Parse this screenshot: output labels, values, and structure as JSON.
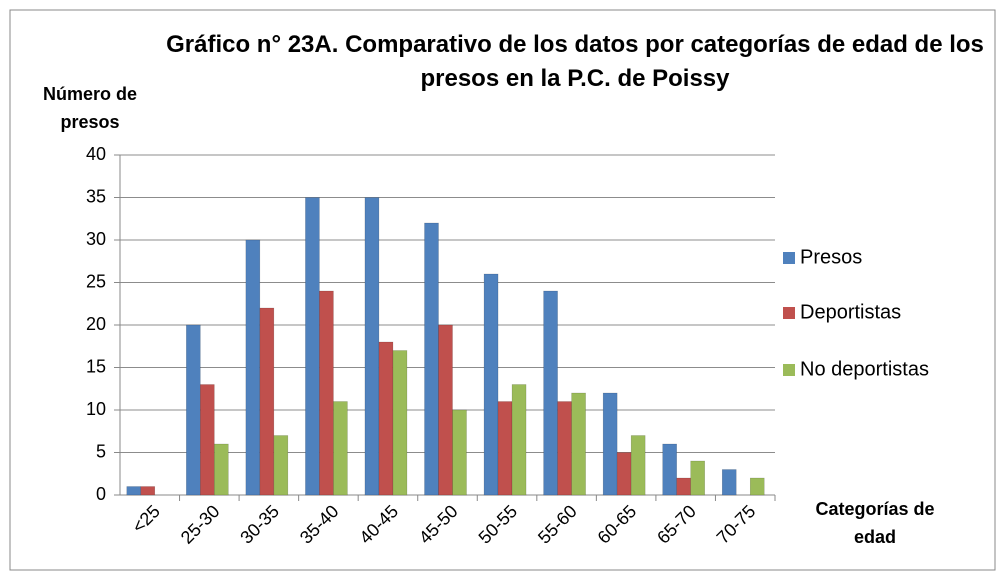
{
  "chart_data": {
    "type": "bar",
    "title": "Gráfico n° 23A. Comparativo de los datos por categorías  de edad de los presos en la P.C. de Poissy",
    "y_label": "Número de presos",
    "x_label": "Categorías de edad",
    "categories": [
      "<25",
      "25-30",
      "30-35",
      "35-40",
      "40-45",
      "45-50",
      "50-55",
      "55-60",
      "60-65",
      "65-70",
      "70-75"
    ],
    "series": [
      {
        "name": "Presos",
        "color": "#4f81bd",
        "values": [
          1,
          20,
          30,
          35,
          35,
          32,
          26,
          24,
          12,
          6,
          3
        ]
      },
      {
        "name": "Deportistas",
        "color": "#c0504d",
        "values": [
          1,
          13,
          22,
          24,
          18,
          20,
          11,
          11,
          5,
          2,
          0
        ]
      },
      {
        "name": "No deportistas",
        "color": "#9bbb59",
        "values": [
          0,
          6,
          7,
          11,
          17,
          10,
          13,
          12,
          7,
          4,
          2
        ]
      }
    ],
    "ylim": [
      0,
      40
    ],
    "yticks": [
      0,
      5,
      10,
      15,
      20,
      25,
      30,
      35,
      40
    ],
    "grid": true,
    "legend": "right"
  }
}
